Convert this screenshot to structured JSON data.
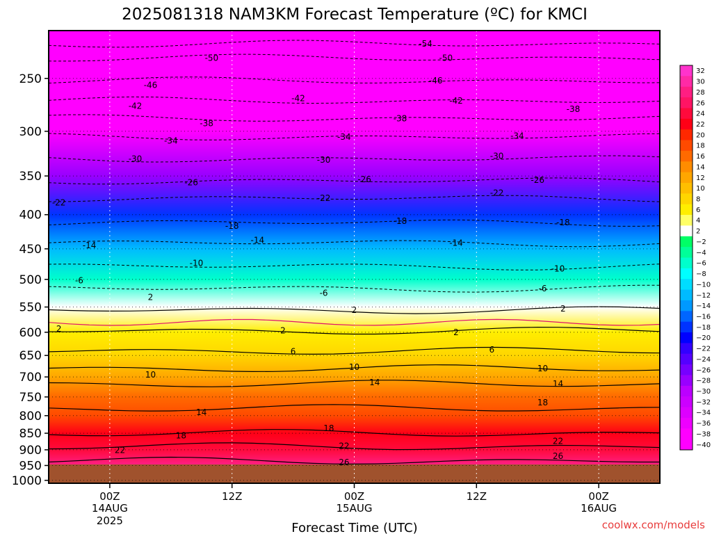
{
  "chart_data": {
    "type": "heatmap",
    "title": "2025081318 NAM3KM Forecast Temperature (ºC) for KMCI",
    "xlabel": "Forecast Time (UTC)",
    "credit": "coolwx.com/models",
    "y_axis": {
      "scale": "log-pressure",
      "reversed": true,
      "range": [
        212,
        1010
      ],
      "ticks": [
        250,
        300,
        350,
        400,
        450,
        500,
        550,
        600,
        650,
        700,
        750,
        800,
        850,
        900,
        950,
        1000
      ]
    },
    "x_axis": {
      "range_hours": [
        0,
        60
      ],
      "ticks": [
        {
          "hour": 6,
          "line1": "00Z",
          "line2": "14AUG",
          "line3": "2025"
        },
        {
          "hour": 18,
          "line1": "12Z",
          "line2": "",
          "line3": ""
        },
        {
          "hour": 30,
          "line1": "00Z",
          "line2": "15AUG",
          "line3": ""
        },
        {
          "hour": 42,
          "line1": "12Z",
          "line2": "",
          "line3": ""
        },
        {
          "hour": 54,
          "line1": "00Z",
          "line2": "16AUG",
          "line3": ""
        }
      ]
    },
    "colorbar": {
      "labels": [
        "32",
        "30",
        "28",
        "26",
        "24",
        "22",
        "20",
        "18",
        "16",
        "14",
        "12",
        "10",
        "8",
        "6",
        "4",
        "2",
        "−2",
        "−4",
        "−6",
        "−8",
        "−10",
        "−12",
        "−14",
        "−16",
        "−18",
        "−20",
        "−22",
        "−24",
        "−26",
        "−28",
        "−30",
        "−32",
        "−34",
        "−36",
        "−38",
        "−40"
      ],
      "colors": [
        "#ff33cc",
        "#ff2aa6",
        "#ff1e82",
        "#ff1464",
        "#ff0a3c",
        "#ff0016",
        "#ff2800",
        "#ff4a00",
        "#ff6a00",
        "#ff8c00",
        "#ffa600",
        "#ffbe00",
        "#ffd600",
        "#ffee00",
        "#ffff66",
        "#ffffff",
        "#00ff66",
        "#00ff99",
        "#00ffcc",
        "#00ffff",
        "#00ddff",
        "#00bbff",
        "#0099ff",
        "#0066ff",
        "#0033ff",
        "#0000ff",
        "#3300ff",
        "#5500ff",
        "#7700ff",
        "#9900ff",
        "#bb00ff",
        "#cc00ff",
        "#dd00ff",
        "#ee00ff",
        "#ff00ff",
        "#ff00ff"
      ]
    },
    "levels_hpa": [
      212,
      250,
      300,
      350,
      400,
      450,
      500,
      550,
      600,
      650,
      700,
      750,
      800,
      850,
      900,
      950,
      1000
    ],
    "mean_temperature_c": [
      -55,
      -47,
      -38,
      -28,
      -19,
      -13,
      -6,
      2,
      5,
      8,
      12,
      15,
      18,
      21,
      24,
      27,
      29
    ],
    "contour_labels": [
      {
        "value": "-54",
        "hour": 37.0,
        "p": 222
      },
      {
        "value": "-50",
        "hour": 16.0,
        "p": 233
      },
      {
        "value": "-50",
        "hour": 39.0,
        "p": 233
      },
      {
        "value": "-46",
        "hour": 10.0,
        "p": 256
      },
      {
        "value": "-46",
        "hour": 38.0,
        "p": 252
      },
      {
        "value": "-42",
        "hour": 8.5,
        "p": 275
      },
      {
        "value": "-42",
        "hour": 24.5,
        "p": 268
      },
      {
        "value": "-42",
        "hour": 40.0,
        "p": 270
      },
      {
        "value": "-38",
        "hour": 15.5,
        "p": 292
      },
      {
        "value": "-38",
        "hour": 34.5,
        "p": 287
      },
      {
        "value": "-38",
        "hour": 51.5,
        "p": 278
      },
      {
        "value": "-34",
        "hour": 12.0,
        "p": 310
      },
      {
        "value": "-34",
        "hour": 29.0,
        "p": 306
      },
      {
        "value": "-34",
        "hour": 46.0,
        "p": 305
      },
      {
        "value": "-30",
        "hour": 8.5,
        "p": 330
      },
      {
        "value": "-30",
        "hour": 27.0,
        "p": 331
      },
      {
        "value": "-30",
        "hour": 44.0,
        "p": 327
      },
      {
        "value": "-26",
        "hour": 14.0,
        "p": 358
      },
      {
        "value": "-26",
        "hour": 31.0,
        "p": 354
      },
      {
        "value": "-26",
        "hour": 48.0,
        "p": 355
      },
      {
        "value": "-22",
        "hour": 1.0,
        "p": 384
      },
      {
        "value": "-22",
        "hour": 27.0,
        "p": 378
      },
      {
        "value": "-22",
        "hour": 44.0,
        "p": 371
      },
      {
        "value": "-18",
        "hour": 18.0,
        "p": 416
      },
      {
        "value": "-18",
        "hour": 34.5,
        "p": 409
      },
      {
        "value": "-18",
        "hour": 50.5,
        "p": 411
      },
      {
        "value": "-14",
        "hour": 4.0,
        "p": 445
      },
      {
        "value": "-14",
        "hour": 20.5,
        "p": 437
      },
      {
        "value": "-14",
        "hour": 40.0,
        "p": 441
      },
      {
        "value": "-10",
        "hour": 14.5,
        "p": 473
      },
      {
        "value": "-10",
        "hour": 50.0,
        "p": 482
      },
      {
        "value": "-6",
        "hour": 3.0,
        "p": 502
      },
      {
        "value": "-6",
        "hour": 27.0,
        "p": 524
      },
      {
        "value": "-6",
        "hour": 48.5,
        "p": 516
      },
      {
        "value": "2",
        "hour": 10.0,
        "p": 532
      },
      {
        "value": "2",
        "hour": 30.0,
        "p": 556
      },
      {
        "value": "2",
        "hour": 50.5,
        "p": 553
      },
      {
        "value": "2",
        "hour": 1.0,
        "p": 593
      },
      {
        "value": "2",
        "hour": 23.0,
        "p": 597
      },
      {
        "value": "2",
        "hour": 40.0,
        "p": 600
      },
      {
        "value": "6",
        "hour": 24.0,
        "p": 641
      },
      {
        "value": "6",
        "hour": 43.5,
        "p": 637
      },
      {
        "value": "10",
        "hour": 10.0,
        "p": 695
      },
      {
        "value": "10",
        "hour": 30.0,
        "p": 677
      },
      {
        "value": "10",
        "hour": 48.5,
        "p": 680
      },
      {
        "value": "14",
        "hour": 32.0,
        "p": 713
      },
      {
        "value": "14",
        "hour": 50.0,
        "p": 717
      },
      {
        "value": "14",
        "hour": 15.0,
        "p": 791
      },
      {
        "value": "18",
        "hour": 48.5,
        "p": 765
      },
      {
        "value": "18",
        "hour": 27.5,
        "p": 836
      },
      {
        "value": "18",
        "hour": 13.0,
        "p": 857
      },
      {
        "value": "22",
        "hour": 7.0,
        "p": 901
      },
      {
        "value": "22",
        "hour": 29.0,
        "p": 888
      },
      {
        "value": "22",
        "hour": 50.0,
        "p": 874
      },
      {
        "value": "26",
        "hour": 29.0,
        "p": 940
      },
      {
        "value": "26",
        "hour": 50.0,
        "p": 920
      }
    ]
  }
}
